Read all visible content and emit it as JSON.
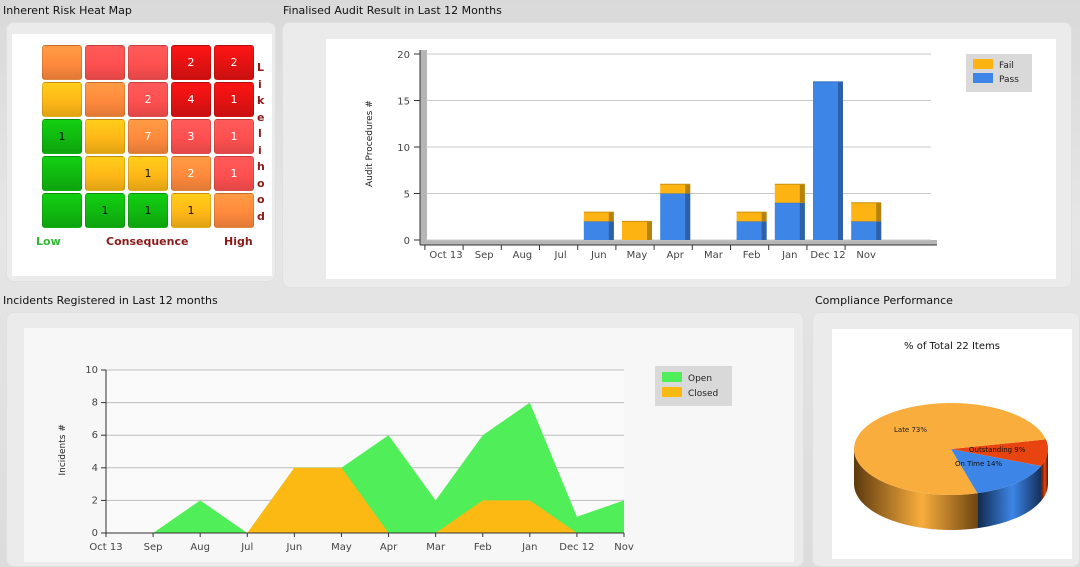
{
  "heatmap": {
    "title": "Inherent Risk Heat Map",
    "rows": [
      [
        {
          "c": "#ff8a3d",
          "v": ""
        },
        {
          "c": "#ff5050",
          "v": ""
        },
        {
          "c": "#ff5050",
          "v": ""
        },
        {
          "c": "#e31212",
          "v": "2"
        },
        {
          "c": "#e31212",
          "v": "2"
        }
      ],
      [
        {
          "c": "#ffb817",
          "v": ""
        },
        {
          "c": "#ff8a3d",
          "v": ""
        },
        {
          "c": "#ff5050",
          "v": "2"
        },
        {
          "c": "#e31212",
          "v": "4"
        },
        {
          "c": "#e31212",
          "v": "1"
        }
      ],
      [
        {
          "c": "#10b910",
          "v": "1"
        },
        {
          "c": "#ffb817",
          "v": ""
        },
        {
          "c": "#ff8a3d",
          "v": "7"
        },
        {
          "c": "#ff5050",
          "v": "3"
        },
        {
          "c": "#ff5050",
          "v": "1"
        }
      ],
      [
        {
          "c": "#10b910",
          "v": ""
        },
        {
          "c": "#ffb817",
          "v": ""
        },
        {
          "c": "#ffb817",
          "v": "1"
        },
        {
          "c": "#ff8a3d",
          "v": "2"
        },
        {
          "c": "#ff5050",
          "v": "1"
        }
      ],
      [
        {
          "c": "#10b910",
          "v": ""
        },
        {
          "c": "#10b910",
          "v": "1"
        },
        {
          "c": "#10b910",
          "v": "1"
        },
        {
          "c": "#ffb817",
          "v": "1"
        },
        {
          "c": "#ff8a3d",
          "v": ""
        }
      ]
    ],
    "side_label": "Likelihood",
    "low": "Low",
    "consequence": "Consequence",
    "high": "High"
  },
  "audit": {
    "title": "Finalised Audit Result in Last 12 Months"
  },
  "incidents": {
    "title": "Incidents Registered in Last 12 months"
  },
  "compliance": {
    "title": "Compliance Performance"
  },
  "chart_data": [
    {
      "type": "bar",
      "stacked": true,
      "categories": [
        "Oct 13",
        "Sep",
        "Aug",
        "Jul",
        "Jun",
        "May",
        "Apr",
        "Mar",
        "Feb",
        "Jan",
        "Dec 12",
        "Nov"
      ],
      "series": [
        {
          "name": "Pass",
          "color": "#3d86e8",
          "values": [
            0,
            0,
            0,
            0,
            2,
            0,
            5,
            0,
            2,
            4,
            17,
            2
          ]
        },
        {
          "name": "Fail",
          "color": "#fdb413",
          "values": [
            0,
            0,
            0,
            0,
            1,
            2,
            1,
            0,
            1,
            2,
            0,
            2
          ]
        }
      ],
      "ylabel": "Audit Procedures #",
      "ylim": [
        0,
        20
      ],
      "yticks": [
        0,
        5,
        10,
        15,
        20
      ],
      "legend": "top-right",
      "grid": true
    },
    {
      "type": "area",
      "categories": [
        "Oct 13",
        "Sep",
        "Aug",
        "Jul",
        "Jun",
        "May",
        "Apr",
        "Mar",
        "Feb",
        "Jan",
        "Dec 12",
        "Nov"
      ],
      "series": [
        {
          "name": "Open",
          "color": "#50ee58",
          "values": [
            0,
            0,
            2,
            0,
            4,
            4,
            6,
            2,
            6,
            8,
            1,
            2
          ]
        },
        {
          "name": "Closed",
          "color": "#fdb913",
          "values": [
            0,
            0,
            0,
            0,
            4,
            4,
            0,
            0,
            2,
            2,
            0,
            0
          ]
        }
      ],
      "ylabel": "Incidents #",
      "ylim": [
        0,
        10
      ],
      "yticks": [
        0,
        2,
        4,
        6,
        8,
        10
      ],
      "legend": "top-right",
      "grid": true
    },
    {
      "type": "pie",
      "title": "% of Total 22 Items",
      "slices": [
        {
          "label": "Late 73%",
          "value": 73,
          "color": "#f9ad3d",
          "side": "#b8741c"
        },
        {
          "label": "Outstanding 9%",
          "value": 9,
          "color": "#e8440f",
          "side": "#8f2407"
        },
        {
          "label": "On Time 14%",
          "value": 14,
          "color": "#3d86e8",
          "side": "#1f4f96"
        }
      ]
    }
  ]
}
